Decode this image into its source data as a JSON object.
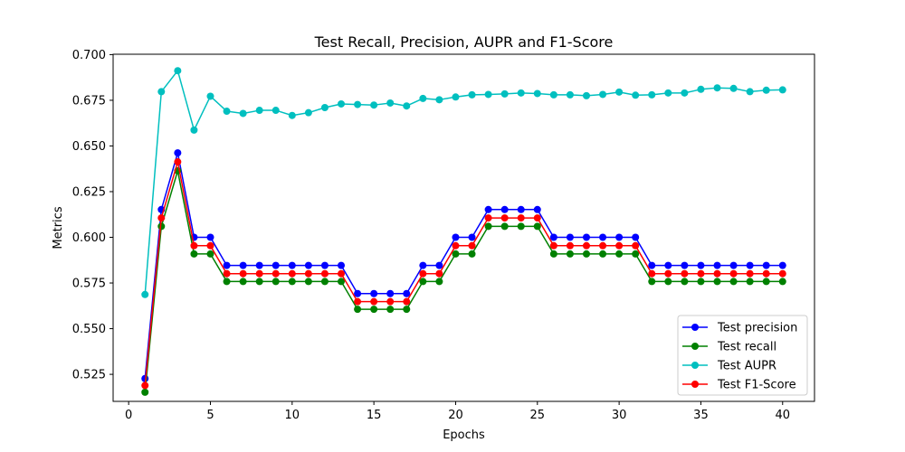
{
  "chart_data": {
    "type": "line",
    "title": "Test Recall, Precision, AUPR and F1-Score",
    "xlabel": "Epochs",
    "ylabel": "Metrics",
    "xlim": [
      -0.95,
      41.95
    ],
    "ylim": [
      0.5102,
      0.7002
    ],
    "xticks": [
      0,
      5,
      10,
      15,
      20,
      25,
      30,
      35,
      40
    ],
    "yticks": [
      0.525,
      0.55,
      0.575,
      0.6,
      0.625,
      0.65,
      0.675,
      0.7
    ],
    "ytick_labels": [
      "0.525",
      "0.550",
      "0.575",
      "0.600",
      "0.625",
      "0.650",
      "0.675",
      "0.700"
    ],
    "grid": false,
    "legend_position": "lower-right",
    "x": [
      1,
      2,
      3,
      4,
      5,
      6,
      7,
      8,
      9,
      10,
      11,
      12,
      13,
      14,
      15,
      16,
      17,
      18,
      19,
      20,
      21,
      22,
      23,
      24,
      25,
      26,
      27,
      28,
      29,
      30,
      31,
      32,
      33,
      34,
      35,
      36,
      37,
      38,
      39,
      40
    ],
    "series": [
      {
        "name": "Test precision",
        "color": "#0000ff",
        "values": [
          0.5227,
          0.6152,
          0.6462,
          0.6,
          0.6,
          0.5846,
          0.5846,
          0.5846,
          0.5846,
          0.5846,
          0.5846,
          0.5846,
          0.5846,
          0.5692,
          0.5692,
          0.5692,
          0.5692,
          0.5846,
          0.5846,
          0.6,
          0.6,
          0.6152,
          0.6152,
          0.6152,
          0.6152,
          0.6,
          0.6,
          0.6,
          0.6,
          0.6,
          0.6,
          0.5846,
          0.5846,
          0.5846,
          0.5846,
          0.5846,
          0.5846,
          0.5846,
          0.5846,
          0.5846
        ]
      },
      {
        "name": "Test recall",
        "color": "#008000",
        "values": [
          0.5152,
          0.606,
          0.6364,
          0.5909,
          0.5909,
          0.5758,
          0.5758,
          0.5758,
          0.5758,
          0.5758,
          0.5758,
          0.5758,
          0.5758,
          0.5606,
          0.5606,
          0.5606,
          0.5606,
          0.5758,
          0.5758,
          0.5909,
          0.5909,
          0.606,
          0.606,
          0.606,
          0.606,
          0.5909,
          0.5909,
          0.5909,
          0.5909,
          0.5909,
          0.5909,
          0.5758,
          0.5758,
          0.5758,
          0.5758,
          0.5758,
          0.5758,
          0.5758,
          0.5758,
          0.5758
        ]
      },
      {
        "name": "Test AUPR",
        "color": "#00bfbf",
        "values": [
          0.5687,
          0.6797,
          0.6912,
          0.6587,
          0.6772,
          0.669,
          0.6678,
          0.6695,
          0.6695,
          0.6667,
          0.6682,
          0.671,
          0.673,
          0.6727,
          0.6724,
          0.6735,
          0.6719,
          0.676,
          0.6753,
          0.6768,
          0.678,
          0.6782,
          0.6785,
          0.679,
          0.6787,
          0.678,
          0.678,
          0.6775,
          0.6782,
          0.6795,
          0.6778,
          0.678,
          0.679,
          0.679,
          0.681,
          0.6818,
          0.6815,
          0.6797,
          0.6805,
          0.6807
        ]
      },
      {
        "name": "Test F1-Score",
        "color": "#ff0000",
        "values": [
          0.5189,
          0.6106,
          0.6413,
          0.5954,
          0.5954,
          0.5801,
          0.5801,
          0.5801,
          0.5801,
          0.5801,
          0.5801,
          0.5801,
          0.5801,
          0.5648,
          0.5648,
          0.5648,
          0.5648,
          0.5801,
          0.5801,
          0.5954,
          0.5954,
          0.6106,
          0.6106,
          0.6106,
          0.6106,
          0.5954,
          0.5954,
          0.5954,
          0.5954,
          0.5954,
          0.5954,
          0.5801,
          0.5801,
          0.5801,
          0.5801,
          0.5801,
          0.5801,
          0.5801,
          0.5801,
          0.5801
        ]
      }
    ]
  }
}
